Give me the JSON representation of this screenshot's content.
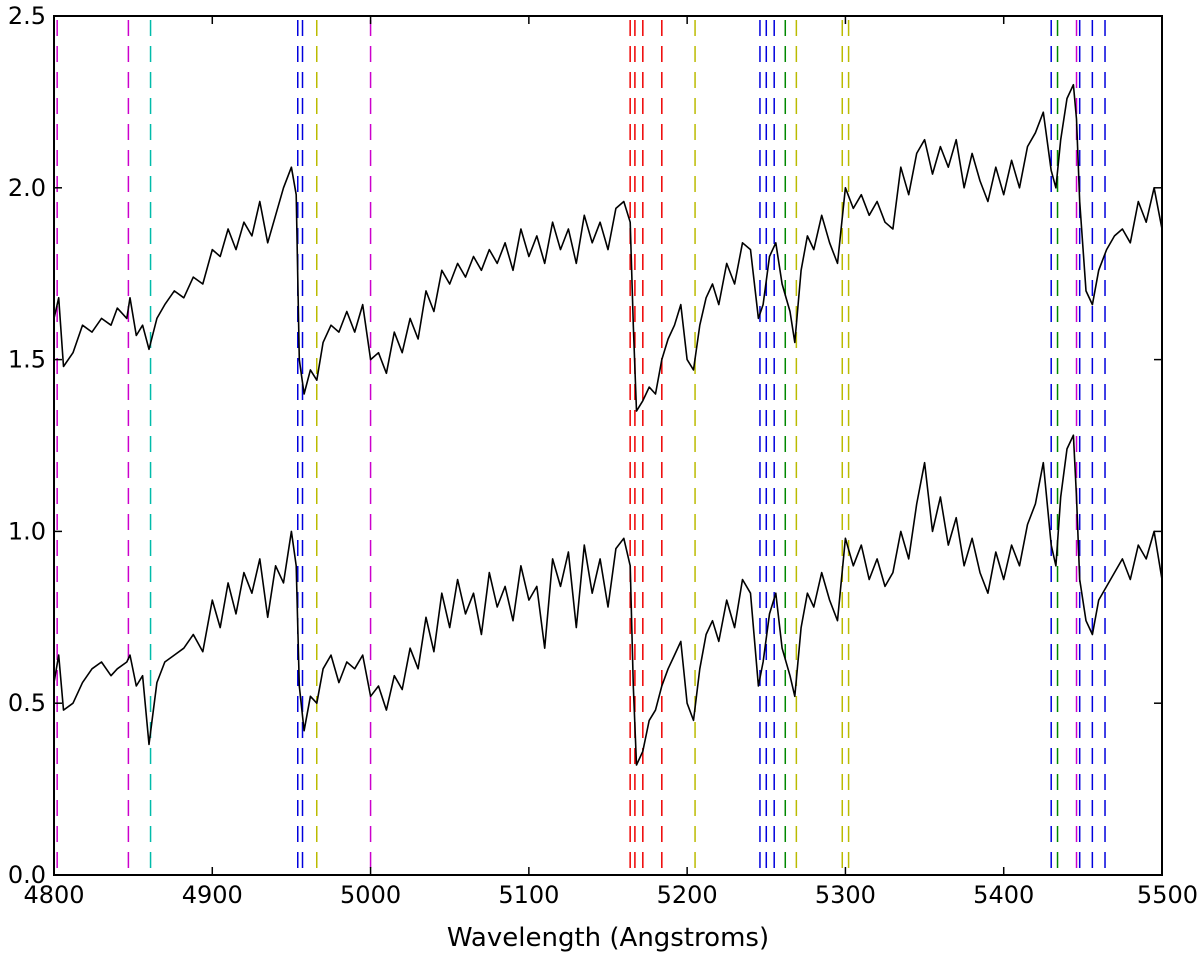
{
  "chart_data": {
    "type": "line",
    "title": "",
    "xlabel": "Wavelength (Angstroms)",
    "ylabel": "",
    "xlim": [
      4800,
      5500
    ],
    "ylim": [
      0.0,
      2.5
    ],
    "x_ticks": [
      4800,
      4900,
      5000,
      5100,
      5200,
      5300,
      5400,
      5500
    ],
    "x_tick_labels": [
      "4800",
      "4900",
      "5000",
      "5100",
      "5200",
      "5300",
      "5400",
      "5500"
    ],
    "y_ticks": [
      0.0,
      0.5,
      1.0,
      1.5,
      2.0,
      2.5
    ],
    "y_tick_labels": [
      "0.0",
      "0.5",
      "1.0",
      "1.5",
      "2.0",
      "2.5"
    ],
    "grid": false,
    "legend": "none",
    "series": [
      {
        "color": "#000000",
        "x": [
          4800,
          4803,
          4806,
          4812,
          4818,
          4824,
          4830,
          4836,
          4840,
          4846,
          4848,
          4852,
          4856,
          4860,
          4865,
          4870,
          4876,
          4882,
          4888,
          4894,
          4900,
          4905,
          4910,
          4915,
          4920,
          4925,
          4930,
          4935,
          4940,
          4945,
          4950,
          4953,
          4955,
          4958,
          4962,
          4966,
          4970,
          4975,
          4980,
          4985,
          4990,
          4995,
          5000,
          5005,
          5010,
          5015,
          5020,
          5025,
          5030,
          5035,
          5040,
          5045,
          5050,
          5055,
          5060,
          5065,
          5070,
          5075,
          5080,
          5085,
          5090,
          5095,
          5100,
          5105,
          5110,
          5115,
          5120,
          5125,
          5130,
          5135,
          5140,
          5145,
          5150,
          5155,
          5160,
          5164,
          5166,
          5168,
          5172,
          5176,
          5180,
          5184,
          5188,
          5192,
          5196,
          5200,
          5204,
          5208,
          5212,
          5216,
          5220,
          5225,
          5230,
          5235,
          5240,
          5245,
          5248,
          5252,
          5256,
          5260,
          5265,
          5268,
          5272,
          5276,
          5280,
          5285,
          5290,
          5295,
          5300,
          5305,
          5310,
          5315,
          5320,
          5325,
          5330,
          5335,
          5340,
          5345,
          5350,
          5355,
          5360,
          5365,
          5370,
          5375,
          5380,
          5385,
          5390,
          5395,
          5400,
          5405,
          5410,
          5415,
          5420,
          5425,
          5430,
          5433,
          5436,
          5440,
          5444,
          5446,
          5448,
          5452,
          5456,
          5460,
          5465,
          5470,
          5475,
          5480,
          5485,
          5490,
          5495,
          5500
        ],
        "y": [
          1.62,
          1.68,
          1.48,
          1.52,
          1.6,
          1.58,
          1.62,
          1.6,
          1.65,
          1.62,
          1.68,
          1.57,
          1.6,
          1.53,
          1.62,
          1.66,
          1.7,
          1.68,
          1.74,
          1.72,
          1.82,
          1.8,
          1.88,
          1.82,
          1.9,
          1.86,
          1.96,
          1.84,
          1.92,
          2.0,
          2.06,
          1.98,
          1.5,
          1.4,
          1.47,
          1.44,
          1.55,
          1.6,
          1.58,
          1.64,
          1.58,
          1.66,
          1.5,
          1.52,
          1.46,
          1.58,
          1.52,
          1.62,
          1.56,
          1.7,
          1.64,
          1.76,
          1.72,
          1.78,
          1.74,
          1.8,
          1.76,
          1.82,
          1.78,
          1.84,
          1.76,
          1.88,
          1.8,
          1.86,
          1.78,
          1.9,
          1.82,
          1.88,
          1.78,
          1.92,
          1.84,
          1.9,
          1.82,
          1.94,
          1.96,
          1.9,
          1.6,
          1.35,
          1.38,
          1.42,
          1.4,
          1.5,
          1.56,
          1.6,
          1.66,
          1.5,
          1.47,
          1.6,
          1.68,
          1.72,
          1.66,
          1.78,
          1.72,
          1.84,
          1.82,
          1.62,
          1.66,
          1.8,
          1.84,
          1.72,
          1.64,
          1.55,
          1.76,
          1.86,
          1.82,
          1.92,
          1.84,
          1.78,
          2.0,
          1.94,
          1.98,
          1.92,
          1.96,
          1.9,
          1.88,
          2.06,
          1.98,
          2.1,
          2.14,
          2.04,
          2.12,
          2.06,
          2.14,
          2.0,
          2.1,
          2.02,
          1.96,
          2.06,
          1.98,
          2.08,
          2.0,
          2.12,
          2.16,
          2.22,
          2.05,
          2.0,
          2.14,
          2.26,
          2.3,
          2.2,
          1.96,
          1.7,
          1.66,
          1.76,
          1.82,
          1.86,
          1.88,
          1.84,
          1.96,
          1.9,
          2.0,
          1.88
        ]
      },
      {
        "color": "#000000",
        "x": [
          4800,
          4803,
          4806,
          4812,
          4818,
          4824,
          4830,
          4836,
          4840,
          4846,
          4848,
          4852,
          4856,
          4860,
          4865,
          4870,
          4876,
          4882,
          4888,
          4894,
          4900,
          4905,
          4910,
          4915,
          4920,
          4925,
          4930,
          4935,
          4940,
          4945,
          4950,
          4953,
          4955,
          4958,
          4962,
          4966,
          4970,
          4975,
          4980,
          4985,
          4990,
          4995,
          5000,
          5005,
          5010,
          5015,
          5020,
          5025,
          5030,
          5035,
          5040,
          5045,
          5050,
          5055,
          5060,
          5065,
          5070,
          5075,
          5080,
          5085,
          5090,
          5095,
          5100,
          5105,
          5110,
          5115,
          5120,
          5125,
          5130,
          5135,
          5140,
          5145,
          5150,
          5155,
          5160,
          5164,
          5166,
          5168,
          5172,
          5176,
          5180,
          5184,
          5188,
          5192,
          5196,
          5200,
          5204,
          5208,
          5212,
          5216,
          5220,
          5225,
          5230,
          5235,
          5240,
          5245,
          5248,
          5252,
          5256,
          5260,
          5265,
          5268,
          5272,
          5276,
          5280,
          5285,
          5290,
          5295,
          5300,
          5305,
          5310,
          5315,
          5320,
          5325,
          5330,
          5335,
          5340,
          5345,
          5350,
          5355,
          5360,
          5365,
          5370,
          5375,
          5380,
          5385,
          5390,
          5395,
          5400,
          5405,
          5410,
          5415,
          5420,
          5425,
          5430,
          5433,
          5436,
          5440,
          5444,
          5446,
          5448,
          5452,
          5456,
          5460,
          5465,
          5470,
          5475,
          5480,
          5485,
          5490,
          5495,
          5500
        ],
        "y": [
          0.56,
          0.64,
          0.48,
          0.5,
          0.56,
          0.6,
          0.62,
          0.58,
          0.6,
          0.62,
          0.64,
          0.55,
          0.58,
          0.38,
          0.56,
          0.62,
          0.64,
          0.66,
          0.7,
          0.65,
          0.8,
          0.72,
          0.85,
          0.76,
          0.88,
          0.82,
          0.92,
          0.75,
          0.9,
          0.85,
          1.0,
          0.9,
          0.55,
          0.42,
          0.52,
          0.5,
          0.6,
          0.64,
          0.56,
          0.62,
          0.6,
          0.64,
          0.52,
          0.55,
          0.48,
          0.58,
          0.54,
          0.66,
          0.6,
          0.75,
          0.65,
          0.82,
          0.72,
          0.86,
          0.76,
          0.82,
          0.7,
          0.88,
          0.78,
          0.84,
          0.74,
          0.9,
          0.8,
          0.84,
          0.66,
          0.92,
          0.84,
          0.94,
          0.72,
          0.96,
          0.82,
          0.92,
          0.78,
          0.95,
          0.98,
          0.9,
          0.55,
          0.32,
          0.36,
          0.45,
          0.48,
          0.55,
          0.6,
          0.64,
          0.68,
          0.5,
          0.45,
          0.6,
          0.7,
          0.74,
          0.68,
          0.8,
          0.72,
          0.86,
          0.82,
          0.55,
          0.62,
          0.76,
          0.82,
          0.66,
          0.58,
          0.52,
          0.72,
          0.82,
          0.78,
          0.88,
          0.8,
          0.74,
          0.98,
          0.9,
          0.96,
          0.86,
          0.92,
          0.84,
          0.88,
          1.0,
          0.92,
          1.08,
          1.2,
          1.0,
          1.1,
          0.96,
          1.04,
          0.9,
          0.98,
          0.88,
          0.82,
          0.94,
          0.86,
          0.96,
          0.9,
          1.02,
          1.08,
          1.2,
          0.96,
          0.9,
          1.1,
          1.24,
          1.28,
          1.1,
          0.86,
          0.74,
          0.7,
          0.8,
          0.84,
          0.88,
          0.92,
          0.86,
          0.96,
          0.92,
          1.0,
          0.86
        ]
      }
    ],
    "line_markers": [
      {
        "x": 4802,
        "color": "#cc00cc"
      },
      {
        "x": 4847,
        "color": "#cc00cc"
      },
      {
        "x": 4861,
        "color": "#00bbaa"
      },
      {
        "x": 4954,
        "color": "#0000dd"
      },
      {
        "x": 4957,
        "color": "#0000dd"
      },
      {
        "x": 4966,
        "color": "#bbbb00"
      },
      {
        "x": 5000,
        "color": "#cc00cc"
      },
      {
        "x": 5164,
        "color": "#ee0000"
      },
      {
        "x": 5167,
        "color": "#ee0000"
      },
      {
        "x": 5172,
        "color": "#ee0000"
      },
      {
        "x": 5184,
        "color": "#ee0000"
      },
      {
        "x": 5205,
        "color": "#bbbb00"
      },
      {
        "x": 5246,
        "color": "#0000dd"
      },
      {
        "x": 5250,
        "color": "#0000dd"
      },
      {
        "x": 5255,
        "color": "#0000dd"
      },
      {
        "x": 5262,
        "color": "#008800"
      },
      {
        "x": 5269,
        "color": "#bbbb00"
      },
      {
        "x": 5298,
        "color": "#bbbb00"
      },
      {
        "x": 5302,
        "color": "#bbbb00"
      },
      {
        "x": 5430,
        "color": "#0000dd"
      },
      {
        "x": 5434,
        "color": "#008800"
      },
      {
        "x": 5446,
        "color": "#cc00cc"
      },
      {
        "x": 5448,
        "color": "#0000dd"
      },
      {
        "x": 5456,
        "color": "#0000dd"
      },
      {
        "x": 5464,
        "color": "#0000dd"
      }
    ]
  }
}
